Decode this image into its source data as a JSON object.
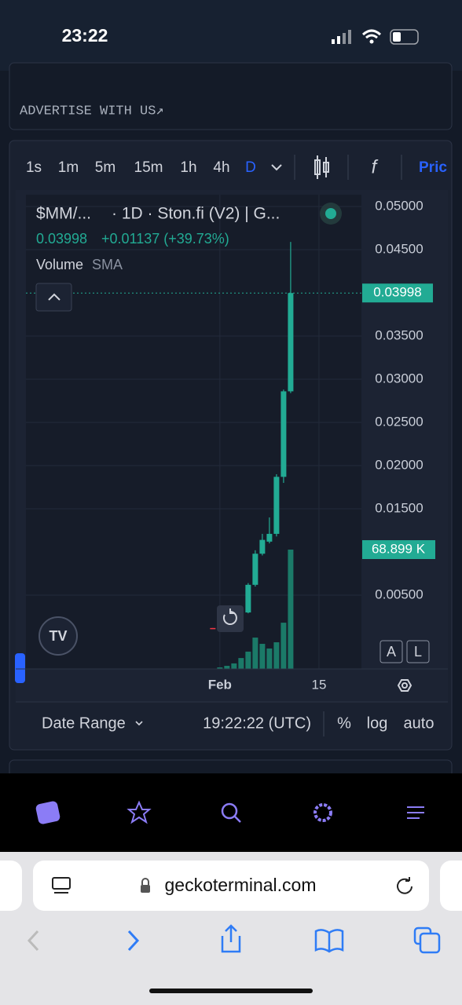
{
  "status_bar": {
    "time": "23:22"
  },
  "advert": "ADVERTISE WITH US↗",
  "toolbar": {
    "intervals": [
      "1s",
      "1m",
      "5m",
      "15m",
      "1h",
      "4h",
      "D"
    ],
    "cut_off": "Pric"
  },
  "legend": {
    "symbol": "$MM/...",
    "source": "· 1D · Ston.fi (V2) | G...",
    "change": "+0.01137 (+39.73%)",
    "indicator": "Volume",
    "indicator_kind": "SMA"
  },
  "chart_data": {
    "type": "candlestick",
    "x": [
      0,
      5,
      6,
      7,
      8,
      9,
      10,
      11
    ],
    "open": [
      0.0012,
      0.003,
      0.0062,
      0.0098,
      0.0112,
      0.0121,
      0.0187,
      0.0286
    ],
    "high": [
      0.0012,
      0.0064,
      0.0102,
      0.0121,
      0.014,
      0.019,
      0.0288,
      0.0459
    ],
    "low": [
      0.0011,
      0.0029,
      0.006,
      0.0096,
      0.011,
      0.0118,
      0.018,
      0.0284
    ],
    "close": [
      0.0011,
      0.0062,
      0.0098,
      0.0114,
      0.0121,
      0.0187,
      0.0286,
      0.03998
    ],
    "up_color": "#22ab94",
    "down_color": "#f23645",
    "ylim": [
      -0.00354,
      0.05136
    ],
    "yticks": [
      {
        "value": 0.05,
        "label": "0.05000"
      },
      {
        "value": 0.045,
        "label": "0.04500"
      },
      {
        "value": 0.035,
        "label": "0.03500"
      },
      {
        "value": 0.03,
        "label": "0.03000"
      },
      {
        "value": 0.025,
        "label": "0.02500"
      },
      {
        "value": 0.02,
        "label": "0.02000"
      },
      {
        "value": 0.015,
        "label": "0.01500"
      },
      {
        "value": 0.005,
        "label": "0.00500"
      }
    ],
    "xlim": [
      -26.4,
      21
    ],
    "xticks": [
      {
        "value": 1,
        "label": "Feb"
      },
      {
        "value": 15,
        "label": "15"
      }
    ],
    "grid": true,
    "volume": {
      "x": [
        1,
        2,
        3,
        4,
        5,
        6,
        7,
        8,
        9,
        10,
        11
      ],
      "values": [
        900,
        1800,
        3200,
        6300,
        10000,
        18100,
        14500,
        11800,
        15400,
        26700,
        68899
      ],
      "value_labels": [
        null,
        null,
        null,
        null,
        null,
        null,
        null,
        null,
        null,
        null,
        "68.899 K"
      ],
      "color": "#1b7a68"
    }
  },
  "scale_buttons": [
    "A",
    "L"
  ],
  "footer": {
    "date_range": "Date Range",
    "time": "19:22:22 (UTC)",
    "options": [
      "%",
      "log",
      "auto"
    ]
  },
  "browser": {
    "url": "geckoterminal.com"
  }
}
